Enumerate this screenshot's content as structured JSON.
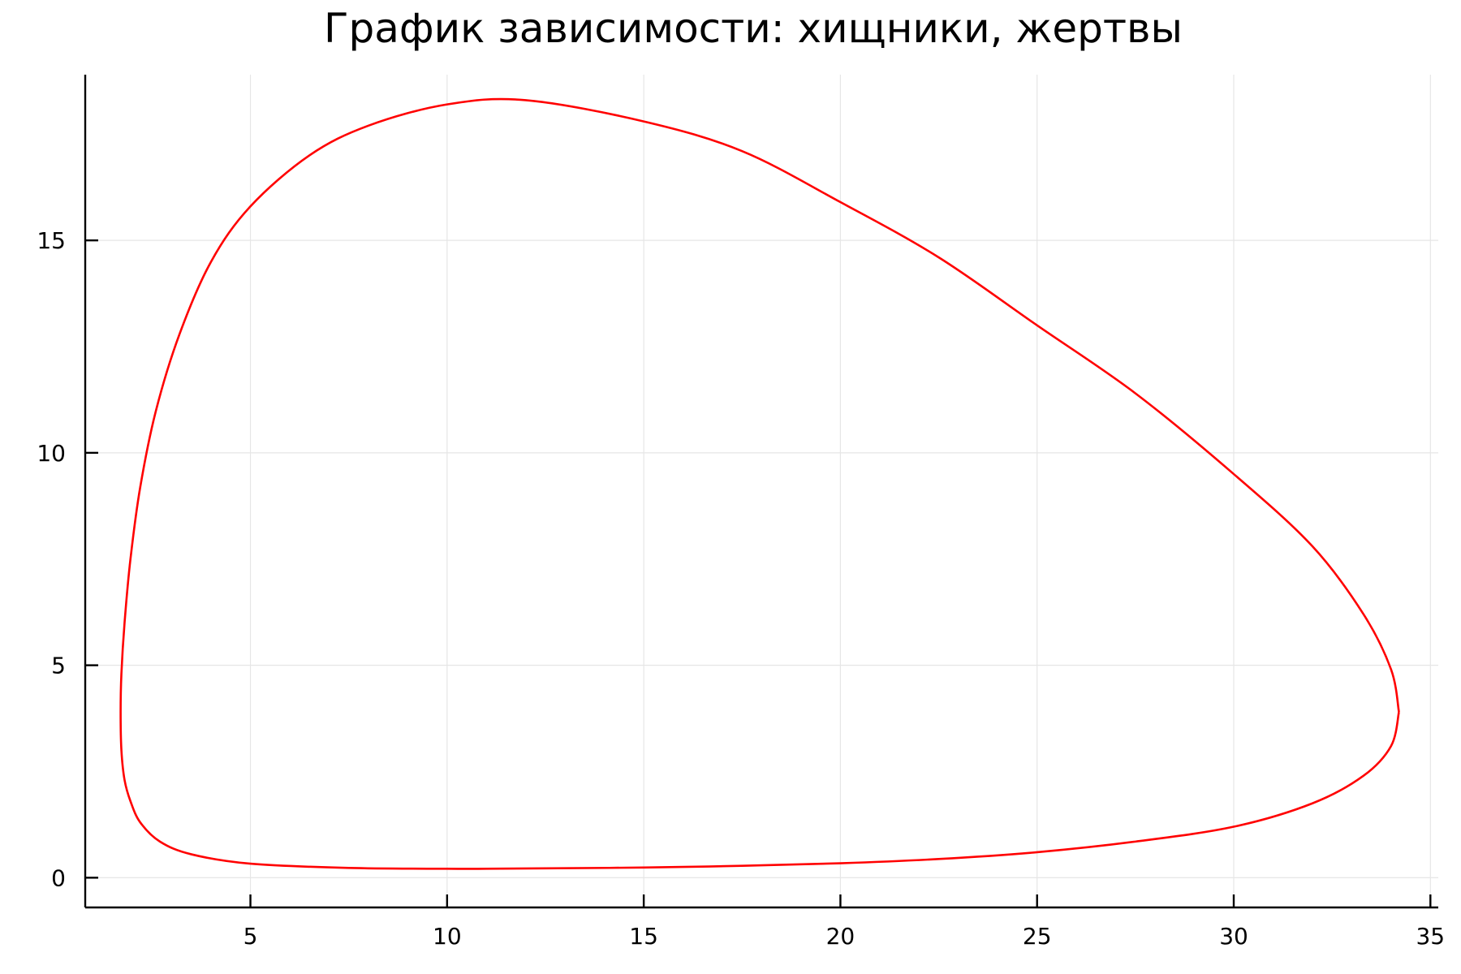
{
  "chart_data": {
    "type": "line",
    "title": "График зависимости: хищники, жертвы",
    "xlabel": "",
    "ylabel": "",
    "xlim": [
      0.8,
      35.2
    ],
    "ylim": [
      -0.7,
      18.9
    ],
    "x_ticks": [
      5,
      10,
      15,
      20,
      25,
      30,
      35
    ],
    "y_ticks": [
      0,
      5,
      10,
      15
    ],
    "grid": true,
    "legend": "none",
    "series": [
      {
        "color": "#ff0000",
        "x": [
          34.2,
          34.0,
          33.3,
          32.0,
          30.0,
          27.5,
          25.0,
          22.5,
          20.0,
          17.5,
          15.0,
          12.5,
          11.0,
          10.0,
          7.5,
          5.0,
          3.5,
          2.7,
          2.2,
          1.95,
          1.8,
          1.72,
          1.7,
          1.72,
          1.8,
          1.95,
          2.2,
          2.6,
          3.2,
          4.0,
          5.0,
          6.5,
          8.0,
          10.0,
          12.0,
          15.0,
          17.5,
          20.0,
          22.5,
          25.0,
          27.5,
          30.0,
          32.0,
          33.3,
          34.0,
          34.2
        ],
        "y": [
          3.9,
          3.1,
          2.4,
          1.75,
          1.2,
          0.85,
          0.6,
          0.44,
          0.34,
          0.28,
          0.24,
          0.22,
          0.21,
          0.21,
          0.23,
          0.33,
          0.55,
          0.85,
          1.3,
          1.8,
          2.3,
          3.0,
          3.9,
          4.8,
          6.0,
          7.5,
          9.2,
          11.0,
          12.8,
          14.5,
          15.8,
          17.0,
          17.7,
          18.2,
          18.3,
          17.8,
          17.1,
          15.9,
          14.6,
          13.0,
          11.4,
          9.5,
          7.8,
          6.2,
          4.9,
          3.9
        ]
      }
    ]
  }
}
